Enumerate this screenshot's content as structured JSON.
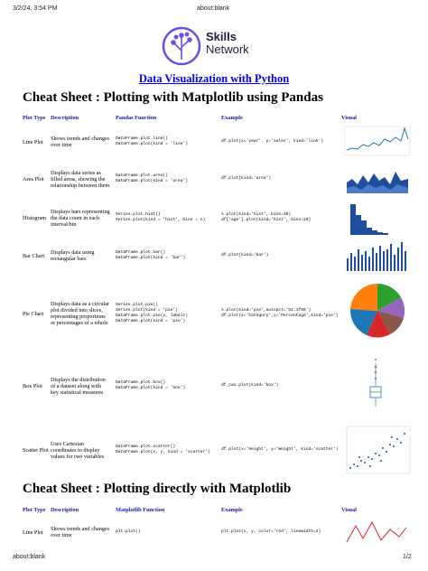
{
  "browser": {
    "datetime": "3/2/24, 3:54 PM",
    "page_title": "about:blank",
    "footer_url": "about:blank",
    "page_number": "1/2"
  },
  "logo": {
    "line1": "Skills",
    "line2": "Network"
  },
  "title": "Data Visualization with Python",
  "sections": [
    {
      "heading": "Cheat Sheet : Plotting with Matplotlib using Pandas",
      "columns": [
        "Plot Type",
        "Description",
        "Pandas Function",
        "Example",
        "Visual"
      ],
      "rows": [
        {
          "plot_type": "Line Plot",
          "description": "Shows trends and changes over time",
          "functions": [
            "DataFrame.plot.line()",
            "DataFrame.plot(kind = 'line')"
          ],
          "examples": [
            "df.plot(x='year', y='sales', kind='line')"
          ]
        },
        {
          "plot_type": "Area Plot",
          "description": "Displays data series as filled areas, showing the relationship between them",
          "functions": [
            "DataFrame.plot.area()",
            "DataFrame.plot(kind = 'area')"
          ],
          "examples": [
            "df.plot(kind='area')"
          ]
        },
        {
          "plot_type": "Histogram",
          "description": "Displays bars representing the data count in each interval/bin",
          "functions": [
            "Series.plot.hist()",
            "Series.plot(kind = 'hist', bins = n)"
          ],
          "examples": [
            "s.plot(kind='hist', bins=10)",
            "df['age'].plot(kind='hist', bins=10)"
          ]
        },
        {
          "plot_type": "Bar Chart",
          "description": "Displays data using rectangular bars",
          "functions": [
            "DataFrame.plot.bar()",
            "DataFrame.plot(kind = 'bar')"
          ],
          "examples": [
            "df.plot(kind='bar')"
          ]
        },
        {
          "plot_type": "Pie Chart",
          "description": "Displays data as a circular plot divided into slices, representing proportions or percentages of a whole",
          "functions": [
            "Series.plot.pie()",
            "Series.plot(kind = 'pie')",
            "DataFrame.plot.pie(y, labels)",
            "DataFrame.plot(kind = 'pie')"
          ],
          "examples": [
            "s.plot(kind='pie',autopct='%1.1f%%')",
            "df.plot(x='Category',y='Percentage',kind='pie')"
          ]
        },
        {
          "plot_type": "Box Plot",
          "description": "Displays the distribution of a dataset along with key statistical measures",
          "functions": [
            "DataFrame.plot.box()",
            "DataFrame.plot(kind = 'box')"
          ],
          "examples": [
            "df_can.plot(kind='box')"
          ]
        },
        {
          "plot_type": "Scatter Plot",
          "description": "Uses Cartesian coordinates to display values for two variables",
          "functions": [
            "DataFrame.plot.scatter()",
            "DataFrame.plot(x, y, kind = 'scatter')"
          ],
          "examples": [
            "df.plot(x='Height', y='Weight', kind='scatter')"
          ]
        }
      ]
    },
    {
      "heading": "Cheat Sheet : Plotting directly with Matplotlib",
      "columns": [
        "Plot Type",
        "Description",
        "Matplotlib Function",
        "Example",
        "Visual"
      ],
      "rows": [
        {
          "plot_type": "Line Plot",
          "description": "Shows trends and changes over time",
          "functions": [
            "plt.plot()"
          ],
          "examples": [
            "plt.plot(x, y, color='red', linewidth=2)"
          ]
        }
      ]
    }
  ]
}
